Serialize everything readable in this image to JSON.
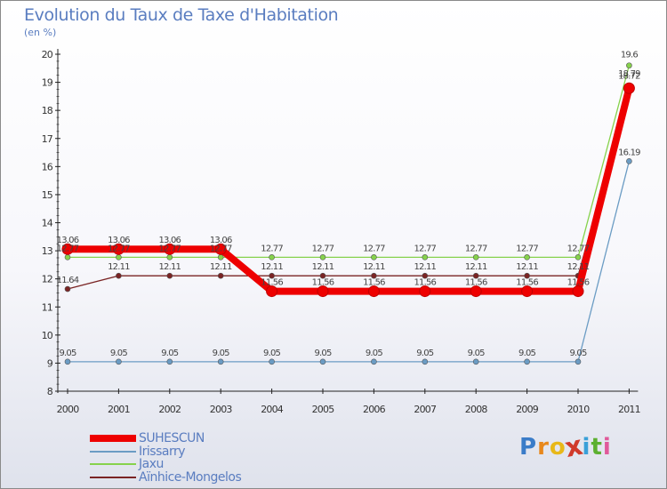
{
  "header": {
    "title": "Evolution du Taux de Taxe d'Habitation",
    "subtitle": "(en %)"
  },
  "chart_data": {
    "type": "line",
    "title": "Evolution du Taux de Taxe d'Habitation",
    "ylabel": "(en %)",
    "xlabel": "",
    "categories": [
      "2000",
      "2001",
      "2002",
      "2003",
      "2004",
      "2005",
      "2006",
      "2007",
      "2008",
      "2009",
      "2010",
      "2011"
    ],
    "ylim": [
      8,
      20
    ],
    "yticks": [
      8,
      9,
      10,
      11,
      12,
      13,
      14,
      15,
      16,
      17,
      18,
      19,
      20
    ],
    "grid": false,
    "series": [
      {
        "name": "SUHESCUN",
        "color": "#ee0000",
        "values": [
          13.06,
          13.06,
          13.06,
          13.06,
          11.56,
          11.56,
          11.56,
          11.56,
          11.56,
          11.56,
          11.56,
          18.79
        ],
        "labels": [
          "13.06",
          "13.06",
          "13.06",
          "13.06",
          "11.56",
          "11.56",
          "11.56",
          "11.56",
          "11.56",
          "11.56",
          "11.56",
          "18.79"
        ]
      },
      {
        "name": "Irissarry",
        "color": "#6b9cc4",
        "values": [
          9.05,
          9.05,
          9.05,
          9.05,
          9.05,
          9.05,
          9.05,
          9.05,
          9.05,
          9.05,
          9.05,
          16.19
        ],
        "labels": [
          "9.05",
          "9.05",
          "9.05",
          "9.05",
          "9.05",
          "9.05",
          "9.05",
          "9.05",
          "9.05",
          "9.05",
          "9.05",
          "16.19"
        ]
      },
      {
        "name": "Jaxu",
        "color": "#86d24c",
        "values": [
          12.77,
          12.77,
          12.77,
          12.77,
          12.77,
          12.77,
          12.77,
          12.77,
          12.77,
          12.77,
          12.77,
          19.6
        ],
        "labels": [
          "12.77",
          "12.77",
          "12.77",
          "12.77",
          "12.77",
          "12.77",
          "12.77",
          "12.77",
          "12.77",
          "12.77",
          "12.77",
          "19.6"
        ]
      },
      {
        "name": "Aïnhice-Mongelos",
        "color": "#7a2424",
        "values": [
          11.64,
          12.11,
          12.11,
          12.11,
          12.11,
          12.11,
          12.11,
          12.11,
          12.11,
          12.11,
          12.11,
          18.72
        ],
        "labels": [
          "11.64",
          "12.11",
          "12.11",
          "12.11",
          "12.11",
          "12.11",
          "12.11",
          "12.11",
          "12.11",
          "12.11",
          "12.11",
          "18.72"
        ]
      }
    ],
    "legend_position": "bottom-left"
  },
  "brand": {
    "letters": [
      "P",
      "r",
      "o",
      "x",
      "i",
      "t",
      "i"
    ],
    "colors": [
      "#3a7cc8",
      "#e8881c",
      "#e8b818",
      "#d03a2a",
      "#3aa0d8",
      "#5cb030",
      "#e05a9a"
    ]
  }
}
